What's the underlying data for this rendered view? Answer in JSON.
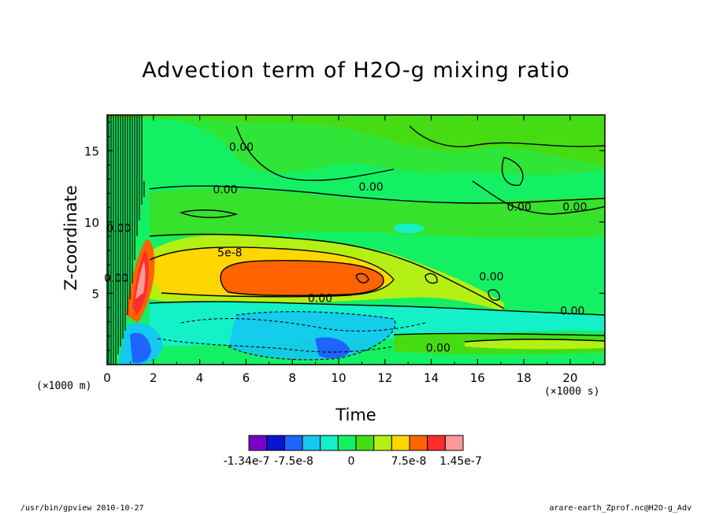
{
  "chart_data": {
    "type": "heatmap",
    "title": "Advection term of H2O-g mixing ratio",
    "xlabel": "Time",
    "ylabel": "Z-coordinate",
    "x_unit": "(×1000 s)",
    "y_unit": "(×1000 m)",
    "xlim": [
      0,
      21.5
    ],
    "ylim": [
      0,
      17.5
    ],
    "x_ticks": [
      "0",
      "2",
      "4",
      "6",
      "8",
      "10",
      "12",
      "14",
      "16",
      "18",
      "20"
    ],
    "x_tick_values": [
      0,
      2,
      4,
      6,
      8,
      10,
      12,
      14,
      16,
      18,
      20
    ],
    "y_ticks": [
      "5",
      "10",
      "15"
    ],
    "y_tick_values": [
      5,
      10,
      15
    ],
    "contour_labels": [
      {
        "text": "0.00",
        "x": 5.8,
        "y": 15
      },
      {
        "text": "0.00",
        "x": 5.1,
        "y": 12.0
      },
      {
        "text": "0.00",
        "x": 11.4,
        "y": 12.2
      },
      {
        "text": "0.00",
        "x": 17.8,
        "y": 10.8
      },
      {
        "text": "0.00",
        "x": 20.2,
        "y": 10.8
      },
      {
        "text": "5e-8",
        "x": 5.3,
        "y": 7.6
      },
      {
        "text": "0.00",
        "x": 9.2,
        "y": 4.4
      },
      {
        "text": "0.00",
        "x": 16.6,
        "y": 5.9
      },
      {
        "text": "0.00",
        "x": 20.1,
        "y": 3.5
      },
      {
        "text": "0.00",
        "x": 14.3,
        "y": 0.9
      },
      {
        "text": "0.00",
        "x": 0.5,
        "y": 9.3
      },
      {
        "text": "0.00",
        "x": 0.4,
        "y": 5.8
      }
    ],
    "colorbar": {
      "colors": [
        "#7a00c8",
        "#0a14d2",
        "#1e64ff",
        "#14c8f0",
        "#14f0c8",
        "#14f064",
        "#46dc14",
        "#b4f014",
        "#ffd700",
        "#ff6400",
        "#ff2d2d",
        "#ff9999"
      ],
      "tick_labels": [
        "-1.34e-7",
        "-7.5e-8",
        "0",
        "7.5e-8",
        "1.45e-7"
      ]
    }
  },
  "footer": {
    "left": "/usr/bin/gpview  2010-10-27",
    "right": "arare-earth_Zprof.nc@H2O-g_Adv"
  }
}
